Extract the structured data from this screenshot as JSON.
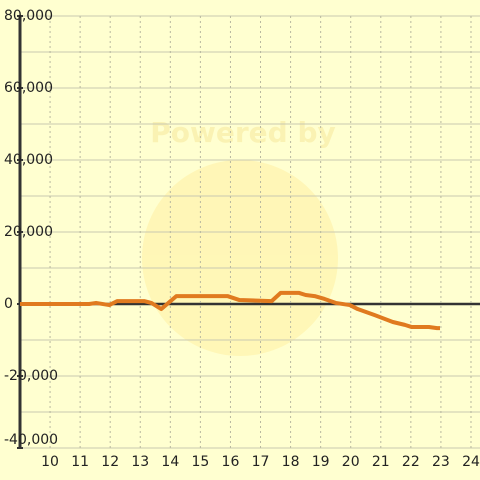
{
  "chart_data": {
    "type": "line",
    "watermark": "Powered by",
    "x": [
      9.0,
      11.3,
      11.53,
      11.97,
      12.23,
      13.13,
      13.37,
      13.7,
      14.2,
      15.9,
      16.3,
      17.37,
      17.67,
      18.27,
      18.5,
      18.8,
      19.13,
      19.5,
      19.97,
      20.23,
      20.8,
      21.4,
      21.8,
      22.03,
      22.6,
      22.87,
      22.97
    ],
    "series": [
      {
        "color": "#e07a1f",
        "values": [
          0,
          0,
          300,
          -300,
          800,
          800,
          300,
          -1400,
          2200,
          2200,
          1100,
          800,
          3100,
          3100,
          2500,
          2200,
          1400,
          300,
          -300,
          -1400,
          -3100,
          -5000,
          -5800,
          -6400,
          -6400,
          -6700,
          -6700
        ]
      }
    ],
    "xlim": [
      9,
      24.3
    ],
    "xticks": [
      10,
      11,
      12,
      13,
      14,
      15,
      16,
      17,
      18,
      19,
      20,
      21,
      22,
      23,
      24
    ],
    "ylim": [
      -40000,
      80000
    ],
    "yticks": [
      {
        "value": -40000,
        "label": "-40,000"
      },
      {
        "value": -20000,
        "label": "-20,000"
      },
      0,
      {
        "value": 20000,
        "label": "20,000"
      },
      {
        "value": 40000,
        "label": "40,000"
      },
      {
        "value": 60000,
        "label": "60,000"
      },
      {
        "value": 80000,
        "label": "80,000"
      }
    ],
    "minor_yticks": [
      -30000,
      -10000,
      10000,
      30000,
      50000,
      70000
    ],
    "grid": true
  }
}
